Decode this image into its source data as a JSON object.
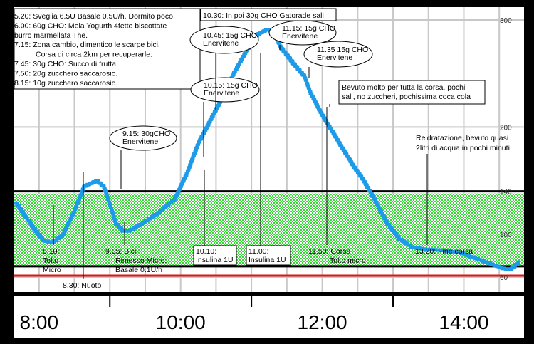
{
  "chart_data": {
    "type": "line",
    "title": "",
    "xlabel": "",
    "ylabel": "",
    "ylim": [
      46,
      312
    ],
    "xlim_hours": [
      7.65,
      14.85
    ],
    "grid": true,
    "legend": "none",
    "colors": {
      "background": "#ffffff",
      "frame": "#000000",
      "grid": "#c8c8c8",
      "series": "#1e9be8",
      "target_band": "#39d839",
      "target_line": "#000000",
      "hypo_line": "#e01515",
      "annotation_line": "#000000"
    },
    "y_ticks": [
      {
        "value": 300,
        "label": "300"
      },
      {
        "value": 200,
        "label": "200"
      },
      {
        "value": 140,
        "label": "140"
      },
      {
        "value": 100,
        "label": "100"
      },
      {
        "value": 60,
        "label": "60"
      }
    ],
    "x_ticks": [
      {
        "hour": 8,
        "label": "8:00"
      },
      {
        "hour": 10,
        "label": "10:00"
      },
      {
        "hour": 12,
        "label": "12:00"
      },
      {
        "hour": 14,
        "label": "14:00"
      }
    ],
    "target_range": [
      70,
      140
    ],
    "hypo_threshold": 60,
    "series": [
      {
        "name": "",
        "x": [
          "7:40",
          "7:45",
          "7:55",
          "8:03",
          "8:10",
          "8:20",
          "8:30",
          "8:38",
          "8:48",
          "8:55",
          "9:00",
          "9:05",
          "9:10",
          "9:15",
          "9:25",
          "9:40",
          "9:55",
          "10:05",
          "10:15",
          "10:25",
          "10:35",
          "10:45",
          "10:55",
          "11:05",
          "11:12",
          "11:18",
          "11:25",
          "11:35",
          "11:45",
          "11:50",
          "11:57",
          "12:05",
          "12:15",
          "12:25",
          "12:35",
          "12:45",
          "12:55",
          "13:05",
          "13:15",
          "13:25",
          "13:40",
          "13:55",
          "14:05",
          "14:15",
          "14:25",
          "14:32",
          "14:38",
          "14:46"
        ],
        "y": [
          129,
          121,
          105,
          94,
          92,
          100,
          123,
          145,
          150,
          143,
          127,
          109,
          103,
          103,
          109,
          120,
          134,
          157,
          186,
          207,
          228,
          251,
          271,
          287,
          291,
          289,
          273,
          259,
          246,
          231,
          216,
          201,
          183,
          165,
          149,
          130,
          109,
          95,
          88,
          86,
          85,
          83,
          79,
          75,
          71,
          68,
          67,
          74
        ]
      }
    ],
    "notes_box_lines": [
      "5.20: Sveglia 6.5U Basale 0.5U/h. Dormito poco.",
      "6.00: 60g CHO: Mela Yogurth 4fette biscottate",
      "burro marmellata The.",
      "7.15: Zona cambio, dimentico le scarpe bici.",
      "Corsa di circa 2km per recuperarle.",
      "7.45: 30g CHO: Succo di frutta.",
      "7.50: 20g zucchero saccarosio.",
      "8.15: 10g zucchero saccarosio."
    ],
    "top_note": "10.30: In poi 30g CHO Gatorade sali",
    "upper_annotations": [
      {
        "time": "9:15",
        "lines": [
          "9.15: 30gCHO",
          "Enervitene"
        ],
        "shape": "ellipse"
      },
      {
        "time": "10:15",
        "lines": [
          "10.15: 15g CHO",
          "Enervitene"
        ],
        "shape": "ellipse"
      },
      {
        "time": "10:45",
        "lines": [
          "10.45: 15g CHO",
          "Enervitene"
        ],
        "shape": "ellipse"
      },
      {
        "time": "11:15",
        "lines": [
          "11.15: 15g CHO",
          "Enervitene"
        ],
        "shape": "ellipse"
      },
      {
        "time": "11:35",
        "lines": [
          "11.35 15g CHO",
          "Enervitene"
        ],
        "shape": "ellipse"
      },
      {
        "time": "11:50",
        "lines": [
          "Bevuto molto per tutta la corsa, pochi",
          "sali, no zuccheri, pochissima coca cola"
        ],
        "shape": "box"
      },
      {
        "time": "13:20",
        "lines": [
          "Reidratazione, bevuto quasi",
          "2litri di acqua in pochi minuti"
        ],
        "shape": "none"
      }
    ],
    "lower_annotations": [
      {
        "time": "8:10",
        "lines": [
          "8.10:",
          "Tolto",
          "Micro"
        ],
        "shape": "none"
      },
      {
        "time": "8:30",
        "lines": [
          "8.30: Nuoto"
        ],
        "shape": "none"
      },
      {
        "time": "9:05",
        "lines": [
          "9.05: Bici",
          "Rimesso Micro:",
          "Basale 0.1U/h"
        ],
        "shape": "none"
      },
      {
        "time": "10:10",
        "lines": [
          "10.10:",
          "Insulina 1U"
        ],
        "shape": "box"
      },
      {
        "time": "11:00",
        "lines": [
          "11.00:",
          "Insulina 1U"
        ],
        "shape": "box"
      },
      {
        "time": "11:50",
        "lines": [
          "11.50: Corsa",
          "Tolto micro"
        ],
        "shape": "none"
      },
      {
        "time": "13:20",
        "lines": [
          "13.20: Fine corsa"
        ],
        "shape": "none"
      }
    ]
  }
}
